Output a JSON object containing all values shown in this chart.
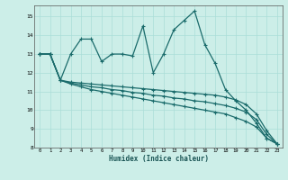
{
  "title": "",
  "xlabel": "Humidex (Indice chaleur)",
  "bg_color": "#cceee8",
  "grid_color": "#aaddd8",
  "line_color": "#1a6b6b",
  "x": [
    0,
    1,
    2,
    3,
    4,
    5,
    6,
    7,
    8,
    9,
    10,
    11,
    12,
    13,
    14,
    15,
    16,
    17,
    18,
    19,
    20,
    21,
    22,
    23
  ],
  "line1": [
    13.0,
    13.0,
    11.6,
    13.0,
    13.8,
    13.8,
    12.6,
    13.0,
    13.0,
    12.9,
    14.5,
    12.0,
    13.0,
    14.3,
    14.8,
    15.3,
    13.5,
    12.5,
    11.1,
    10.5,
    10.0,
    9.3,
    8.5,
    8.2
  ],
  "line2": [
    13.0,
    13.0,
    11.6,
    11.5,
    11.45,
    11.4,
    11.35,
    11.3,
    11.25,
    11.2,
    11.15,
    11.1,
    11.05,
    11.0,
    10.95,
    10.9,
    10.85,
    10.8,
    10.7,
    10.55,
    10.3,
    9.8,
    8.9,
    8.2
  ],
  "line3": [
    13.0,
    13.0,
    11.6,
    11.45,
    11.35,
    11.25,
    11.2,
    11.1,
    11.05,
    10.95,
    10.9,
    10.8,
    10.75,
    10.65,
    10.6,
    10.5,
    10.45,
    10.35,
    10.25,
    10.1,
    9.9,
    9.5,
    8.7,
    8.2
  ],
  "line4": [
    13.0,
    13.0,
    11.6,
    11.4,
    11.25,
    11.1,
    11.0,
    10.9,
    10.8,
    10.7,
    10.6,
    10.5,
    10.4,
    10.3,
    10.2,
    10.1,
    10.0,
    9.9,
    9.8,
    9.6,
    9.4,
    9.1,
    8.5,
    8.2
  ],
  "ylim": [
    8,
    15.6
  ],
  "yticks": [
    8,
    9,
    10,
    11,
    12,
    13,
    14,
    15
  ],
  "xlim": [
    -0.5,
    23.5
  ],
  "xticks": [
    0,
    1,
    2,
    3,
    4,
    5,
    6,
    7,
    8,
    9,
    10,
    11,
    12,
    13,
    14,
    15,
    16,
    17,
    18,
    19,
    20,
    21,
    22,
    23
  ]
}
